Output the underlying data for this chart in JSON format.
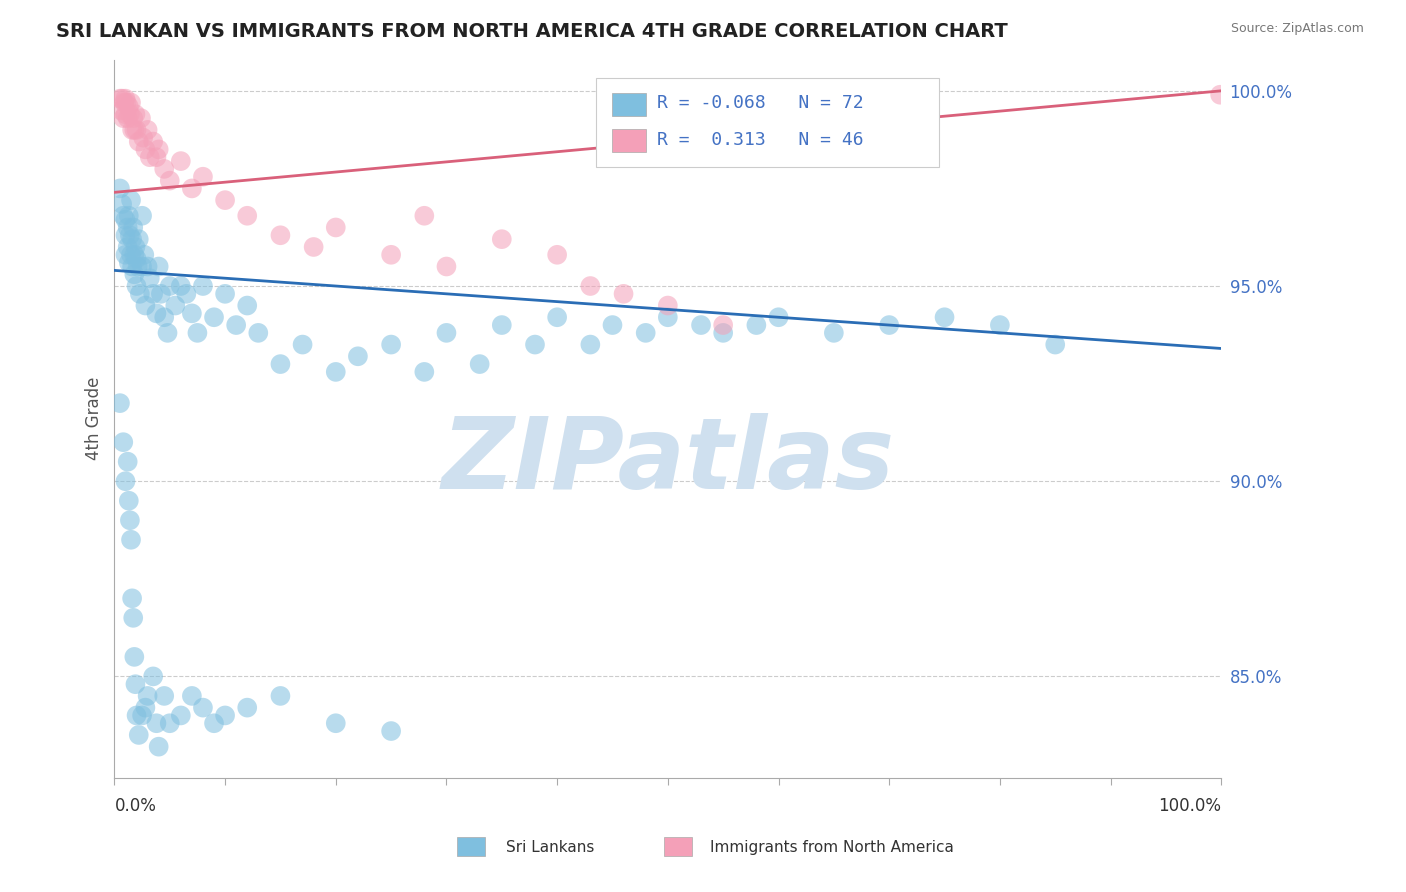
{
  "title": "SRI LANKAN VS IMMIGRANTS FROM NORTH AMERICA 4TH GRADE CORRELATION CHART",
  "source_text": "Source: ZipAtlas.com",
  "ylabel": "4th Grade",
  "right_yticks": [
    85.0,
    90.0,
    95.0,
    100.0
  ],
  "xmin": 0.0,
  "xmax": 1.0,
  "ymin": 0.824,
  "ymax": 1.008,
  "blue_R": -0.068,
  "blue_N": 72,
  "pink_R": 0.313,
  "pink_N": 46,
  "blue_color": "#7fbfdf",
  "pink_color": "#f4a0b8",
  "blue_line_color": "#2a6db5",
  "pink_line_color": "#d9607a",
  "watermark": "ZIPatlas",
  "watermark_color": "#cfe0ef",
  "legend_blue_label": "Sri Lankans",
  "legend_pink_label": "Immigrants from North America",
  "blue_trend_y0": 0.954,
  "blue_trend_y1": 0.934,
  "pink_trend_y0": 0.974,
  "pink_trend_y1": 1.0,
  "blue_scatter_x": [
    0.005,
    0.007,
    0.008,
    0.01,
    0.01,
    0.01,
    0.012,
    0.012,
    0.013,
    0.013,
    0.014,
    0.015,
    0.015,
    0.016,
    0.016,
    0.017,
    0.018,
    0.018,
    0.019,
    0.02,
    0.02,
    0.021,
    0.022,
    0.023,
    0.025,
    0.025,
    0.027,
    0.028,
    0.03,
    0.032,
    0.035,
    0.038,
    0.04,
    0.042,
    0.045,
    0.048,
    0.05,
    0.055,
    0.06,
    0.065,
    0.07,
    0.075,
    0.08,
    0.09,
    0.1,
    0.11,
    0.12,
    0.13,
    0.15,
    0.17,
    0.2,
    0.22,
    0.25,
    0.28,
    0.3,
    0.33,
    0.35,
    0.38,
    0.4,
    0.43,
    0.45,
    0.48,
    0.5,
    0.53,
    0.55,
    0.58,
    0.6,
    0.65,
    0.7,
    0.75,
    0.8,
    0.85
  ],
  "blue_scatter_y": [
    0.975,
    0.971,
    0.968,
    0.967,
    0.963,
    0.958,
    0.965,
    0.96,
    0.956,
    0.968,
    0.963,
    0.972,
    0.958,
    0.962,
    0.955,
    0.965,
    0.958,
    0.953,
    0.96,
    0.957,
    0.95,
    0.955,
    0.962,
    0.948,
    0.968,
    0.955,
    0.958,
    0.945,
    0.955,
    0.952,
    0.948,
    0.943,
    0.955,
    0.948,
    0.942,
    0.938,
    0.95,
    0.945,
    0.95,
    0.948,
    0.943,
    0.938,
    0.95,
    0.942,
    0.948,
    0.94,
    0.945,
    0.938,
    0.93,
    0.935,
    0.928,
    0.932,
    0.935,
    0.928,
    0.938,
    0.93,
    0.94,
    0.935,
    0.942,
    0.935,
    0.94,
    0.938,
    0.942,
    0.94,
    0.938,
    0.94,
    0.942,
    0.938,
    0.94,
    0.942,
    0.94,
    0.935
  ],
  "blue_scatter_y_extra": [
    0.92,
    0.91,
    0.9,
    0.905,
    0.895,
    0.89,
    0.885,
    0.87,
    0.865,
    0.855,
    0.848,
    0.84,
    0.835,
    0.84,
    0.842,
    0.845,
    0.85,
    0.838,
    0.832,
    0.845,
    0.838,
    0.84,
    0.845,
    0.842,
    0.838,
    0.84,
    0.842,
    0.845,
    0.838,
    0.836
  ],
  "blue_scatter_x_extra": [
    0.005,
    0.008,
    0.01,
    0.012,
    0.013,
    0.014,
    0.015,
    0.016,
    0.017,
    0.018,
    0.019,
    0.02,
    0.022,
    0.025,
    0.028,
    0.03,
    0.035,
    0.038,
    0.04,
    0.045,
    0.05,
    0.06,
    0.07,
    0.08,
    0.09,
    0.1,
    0.12,
    0.15,
    0.2,
    0.25
  ],
  "pink_scatter_x": [
    0.005,
    0.006,
    0.007,
    0.008,
    0.009,
    0.01,
    0.01,
    0.011,
    0.012,
    0.013,
    0.014,
    0.015,
    0.016,
    0.017,
    0.018,
    0.019,
    0.02,
    0.022,
    0.024,
    0.026,
    0.028,
    0.03,
    0.032,
    0.035,
    0.038,
    0.04,
    0.045,
    0.05,
    0.06,
    0.07,
    0.08,
    0.1,
    0.12,
    0.15,
    0.18,
    0.2,
    0.25,
    0.28,
    0.3,
    0.35,
    0.4,
    0.43,
    0.46,
    0.5,
    0.55,
    0.999
  ],
  "pink_scatter_y": [
    0.998,
    0.995,
    0.998,
    0.993,
    0.997,
    0.998,
    0.994,
    0.997,
    0.993,
    0.996,
    0.994,
    0.997,
    0.99,
    0.993,
    0.99,
    0.994,
    0.99,
    0.987,
    0.993,
    0.988,
    0.985,
    0.99,
    0.983,
    0.987,
    0.983,
    0.985,
    0.98,
    0.977,
    0.982,
    0.975,
    0.978,
    0.972,
    0.968,
    0.963,
    0.96,
    0.965,
    0.958,
    0.968,
    0.955,
    0.962,
    0.958,
    0.95,
    0.948,
    0.945,
    0.94,
    0.999
  ]
}
